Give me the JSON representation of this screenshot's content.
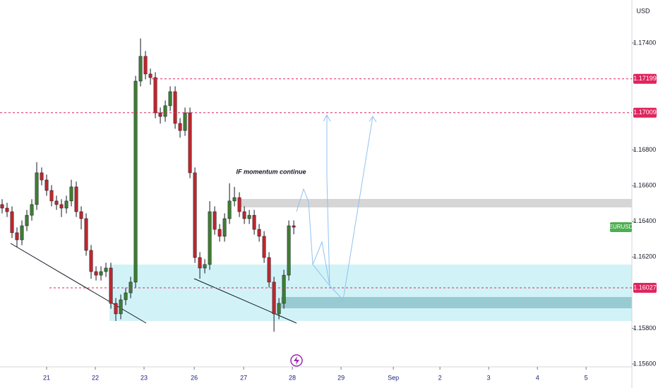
{
  "chart_data": {
    "type": "candlestick",
    "currency": "USD",
    "symbol": "EURUSD",
    "annotation": "IF momentum continue",
    "colors": {
      "up": "#3f7d32",
      "down": "#c0262d",
      "level": "#e0245e",
      "symbol": "#4caf50"
    },
    "open": [
      1.16494,
      1.16474,
      1.16454,
      1.16336,
      1.16296,
      1.16375,
      1.16434,
      1.16494,
      1.16672,
      1.16632,
      1.16573,
      1.16514,
      1.16494,
      1.16474,
      1.16514,
      1.16593,
      1.16454,
      1.16415,
      1.16237,
      1.16118,
      1.16098,
      1.16118,
      1.16138,
      1.1594,
      1.15881,
      1.1596,
      1.15999,
      1.16059,
      1.17186,
      1.17325,
      1.17226,
      1.17206,
      1.17008,
      1.16988,
      1.17048,
      1.17127,
      1.16949,
      1.16909,
      1.17008,
      1.16672,
      1.16197,
      1.16138,
      1.16158,
      1.16454,
      1.16355,
      1.16316,
      1.16415,
      1.16514,
      1.16533,
      1.16454,
      1.16415,
      1.16434,
      1.16355,
      1.16316,
      1.16197,
      1.16059,
      1.15881,
      1.1594,
      1.16098,
      1.16375
    ],
    "high": [
      1.16524,
      1.16504,
      1.16484,
      1.16366,
      1.16405,
      1.16464,
      1.16524,
      1.16732,
      1.16702,
      1.16662,
      1.16603,
      1.16544,
      1.16524,
      1.16544,
      1.16633,
      1.16623,
      1.16484,
      1.16445,
      1.16267,
      1.16148,
      1.16148,
      1.16168,
      1.16168,
      1.1597,
      1.1599,
      1.16029,
      1.16089,
      1.17216,
      1.17425,
      1.17355,
      1.17256,
      1.17236,
      1.17038,
      1.17078,
      1.17157,
      1.17157,
      1.16979,
      1.17038,
      1.17038,
      1.16702,
      1.16227,
      1.16188,
      1.16513,
      1.16484,
      1.16385,
      1.16445,
      1.16613,
      1.16593,
      1.16563,
      1.16484,
      1.16464,
      1.16464,
      1.16385,
      1.16345,
      1.16227,
      1.16089,
      1.1597,
      1.16128,
      1.16405,
      1.16405
    ],
    "low": [
      1.16444,
      1.16424,
      1.16306,
      1.16256,
      1.16266,
      1.16345,
      1.16404,
      1.16464,
      1.16602,
      1.16543,
      1.16484,
      1.16464,
      1.16424,
      1.16444,
      1.16484,
      1.16424,
      1.16355,
      1.16207,
      1.16078,
      1.16068,
      1.16068,
      1.16088,
      1.1591,
      1.15841,
      1.15851,
      1.1593,
      1.15969,
      1.16029,
      1.17156,
      1.17196,
      1.17166,
      1.16978,
      1.16948,
      1.16958,
      1.17018,
      1.16919,
      1.16869,
      1.16879,
      1.16642,
      1.16167,
      1.16078,
      1.16108,
      1.16128,
      1.16325,
      1.16286,
      1.16286,
      1.16385,
      1.16484,
      1.16424,
      1.16385,
      1.16385,
      1.16325,
      1.16286,
      1.16167,
      1.16029,
      1.15781,
      1.15851,
      1.1591,
      1.16068,
      1.16327
    ],
    "close": [
      1.16474,
      1.16454,
      1.16336,
      1.16296,
      1.16375,
      1.16434,
      1.16494,
      1.16672,
      1.16632,
      1.16573,
      1.16514,
      1.16494,
      1.16474,
      1.16514,
      1.16593,
      1.16454,
      1.16415,
      1.16237,
      1.16118,
      1.16098,
      1.16118,
      1.16138,
      1.1594,
      1.15881,
      1.1596,
      1.15999,
      1.16059,
      1.17186,
      1.17325,
      1.17226,
      1.17206,
      1.17008,
      1.16988,
      1.17048,
      1.17127,
      1.16949,
      1.16909,
      1.17008,
      1.16672,
      1.16197,
      1.16138,
      1.16158,
      1.16454,
      1.16355,
      1.16316,
      1.16415,
      1.16514,
      1.16533,
      1.16454,
      1.16415,
      1.16434,
      1.16355,
      1.16316,
      1.16197,
      1.16059,
      1.15881,
      1.1594,
      1.16098,
      1.16375,
      1.16367
    ],
    "ylim": [
      1.15584,
      1.17641
    ],
    "yticks": [
      {
        "value": 1.174,
        "label": "1.17400"
      },
      {
        "value": 1.168,
        "label": "1.16800"
      },
      {
        "value": 1.166,
        "label": "1.16600"
      },
      {
        "value": 1.164,
        "label": "1.16400"
      },
      {
        "value": 1.162,
        "label": "1.16200"
      },
      {
        "value": 1.158,
        "label": "1.15800"
      },
      {
        "value": 1.156,
        "label": "1.15600"
      }
    ],
    "xlim": [
      -0.43,
      127.4
    ],
    "xticks": [
      {
        "value": 9.0,
        "label": "21"
      },
      {
        "value": 18.86,
        "label": "22"
      },
      {
        "value": 28.71,
        "label": "23"
      },
      {
        "value": 38.86,
        "label": "26"
      },
      {
        "value": 48.86,
        "label": "27"
      },
      {
        "value": 58.71,
        "label": "28"
      },
      {
        "value": 68.57,
        "label": "29"
      },
      {
        "value": 79.14,
        "label": "Sep"
      },
      {
        "value": 88.57,
        "label": "2"
      },
      {
        "value": 98.43,
        "label": "3"
      },
      {
        "value": 108.29,
        "label": "4"
      },
      {
        "value": 118.14,
        "label": "5"
      }
    ],
    "levels": [
      1.17199,
      1.17009,
      1.16027
    ]
  }
}
